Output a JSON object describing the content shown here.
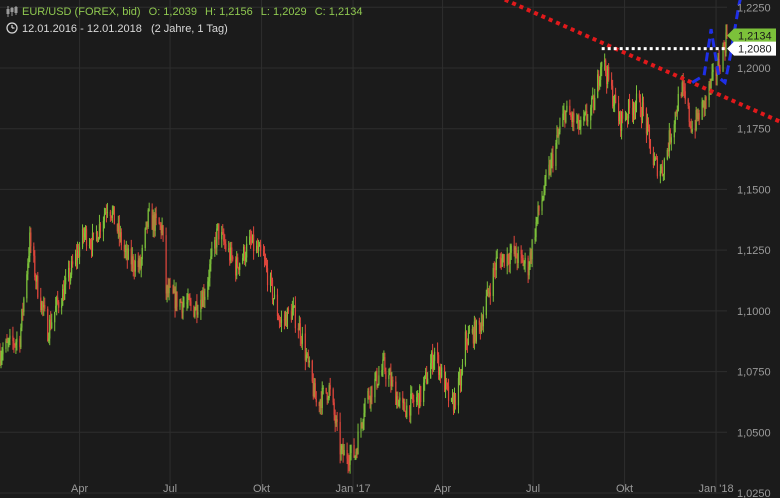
{
  "header": {
    "instrument": "EUR/USD (FOREX, bid)",
    "open": "O: 1,2039",
    "high": "H: 1,2156",
    "low": "L: 1,2029",
    "close": "C: 1,2134",
    "range": "12.01.2016 - 12.01.2018",
    "period": "(2 Jahre, 1 Tag)"
  },
  "colors": {
    "background": "#1b1b1b",
    "grid": "#2e2e2e",
    "up": "#7cc13a",
    "down": "#e0463c",
    "axis_text": "#9a9a9a",
    "trend": "#e0191b",
    "projection": "#1f2fe6",
    "level": "#ffffff",
    "price_tag": "#7cc13a"
  },
  "chart_data": {
    "type": "candlestick",
    "x_tick_labels": [
      "Apr",
      "Jul",
      "Okt",
      "Jan '17",
      "Apr",
      "Jul",
      "Okt",
      "Jan '18"
    ],
    "y_tick_labels": [
      "1,0250",
      "1,0500",
      "1,0750",
      "1,1000",
      "1,1250",
      "1,1500",
      "1,1750",
      "1,2000",
      "1,2250"
    ],
    "y_ticks": [
      1.025,
      1.05,
      1.075,
      1.1,
      1.125,
      1.15,
      1.175,
      1.2,
      1.225
    ],
    "ylim": [
      1.025,
      1.228
    ],
    "x_range": [
      "2016-01-12",
      "2018-01-12"
    ],
    "price_tag": {
      "label": "1,2134",
      "value": 1.2134
    },
    "level_tag": {
      "label": "1,2080",
      "value": 1.208
    },
    "level_line": {
      "from": "2017-09-08",
      "to": "2018-01-12",
      "value": 1.208
    },
    "trendline": {
      "points": [
        [
          "2017-02-05",
          1.2495
        ],
        [
          "2018-01-12",
          1.1825
        ]
      ]
    },
    "projection": {
      "points": [
        [
          "2017-12-08",
          1.194
        ],
        [
          "2017-12-20",
          1.197
        ],
        [
          "2017-12-27",
          1.216
        ],
        [
          "2018-01-04",
          1.196
        ],
        [
          "2018-01-10",
          1.194
        ],
        [
          "2018-01-14",
          1.202
        ],
        [
          "2018-01-24",
          1.226
        ],
        [
          "2018-01-30",
          1.236
        ]
      ]
    },
    "price_path": [
      [
        "2016-01-12",
        1.083
      ],
      [
        "2016-02-01",
        1.089
      ],
      [
        "2016-02-11",
        1.129
      ],
      [
        "2016-02-18",
        1.111
      ],
      [
        "2016-02-29",
        1.092
      ],
      [
        "2016-03-10",
        1.103
      ],
      [
        "2016-03-15",
        1.107
      ],
      [
        "2016-03-25",
        1.118
      ],
      [
        "2016-04-06",
        1.132
      ],
      [
        "2016-04-15",
        1.128
      ],
      [
        "2016-04-30",
        1.145
      ],
      [
        "2016-05-18",
        1.122
      ],
      [
        "2016-06-01",
        1.118
      ],
      [
        "2016-06-09",
        1.138
      ],
      [
        "2016-06-23",
        1.134
      ],
      [
        "2016-06-27",
        1.108
      ],
      [
        "2016-07-05",
        1.105
      ],
      [
        "2016-07-25",
        1.101
      ],
      [
        "2016-08-05",
        1.108
      ],
      [
        "2016-08-18",
        1.133
      ],
      [
        "2016-09-05",
        1.118
      ],
      [
        "2016-09-20",
        1.128
      ],
      [
        "2016-10-03",
        1.121
      ],
      [
        "2016-10-20",
        1.095
      ],
      [
        "2016-11-01",
        1.1
      ],
      [
        "2016-11-09",
        1.092
      ],
      [
        "2016-11-25",
        1.062
      ],
      [
        "2016-12-08",
        1.068
      ],
      [
        "2016-12-20",
        1.041
      ],
      [
        "2017-01-03",
        1.041
      ],
      [
        "2017-01-13",
        1.063
      ],
      [
        "2017-02-01",
        1.077
      ],
      [
        "2017-02-20",
        1.059
      ],
      [
        "2017-03-10",
        1.065
      ],
      [
        "2017-03-24",
        1.083
      ],
      [
        "2017-04-05",
        1.067
      ],
      [
        "2017-04-10",
        1.06
      ],
      [
        "2017-04-20",
        1.072
      ],
      [
        "2017-04-24",
        1.088
      ],
      [
        "2017-05-08",
        1.093
      ],
      [
        "2017-05-25",
        1.12
      ],
      [
        "2017-06-10",
        1.124
      ],
      [
        "2017-06-26",
        1.118
      ],
      [
        "2017-07-05",
        1.138
      ],
      [
        "2017-07-20",
        1.162
      ],
      [
        "2017-08-02",
        1.182
      ],
      [
        "2017-08-18",
        1.175
      ],
      [
        "2017-09-01",
        1.186
      ],
      [
        "2017-09-08",
        1.205
      ],
      [
        "2017-09-26",
        1.178
      ],
      [
        "2017-10-12",
        1.186
      ],
      [
        "2017-10-20",
        1.182
      ],
      [
        "2017-10-30",
        1.161
      ],
      [
        "2017-11-08",
        1.158
      ],
      [
        "2017-11-27",
        1.192
      ],
      [
        "2017-12-08",
        1.175
      ],
      [
        "2017-12-20",
        1.185
      ],
      [
        "2018-01-05",
        1.203
      ],
      [
        "2018-01-12",
        1.2134
      ]
    ]
  }
}
